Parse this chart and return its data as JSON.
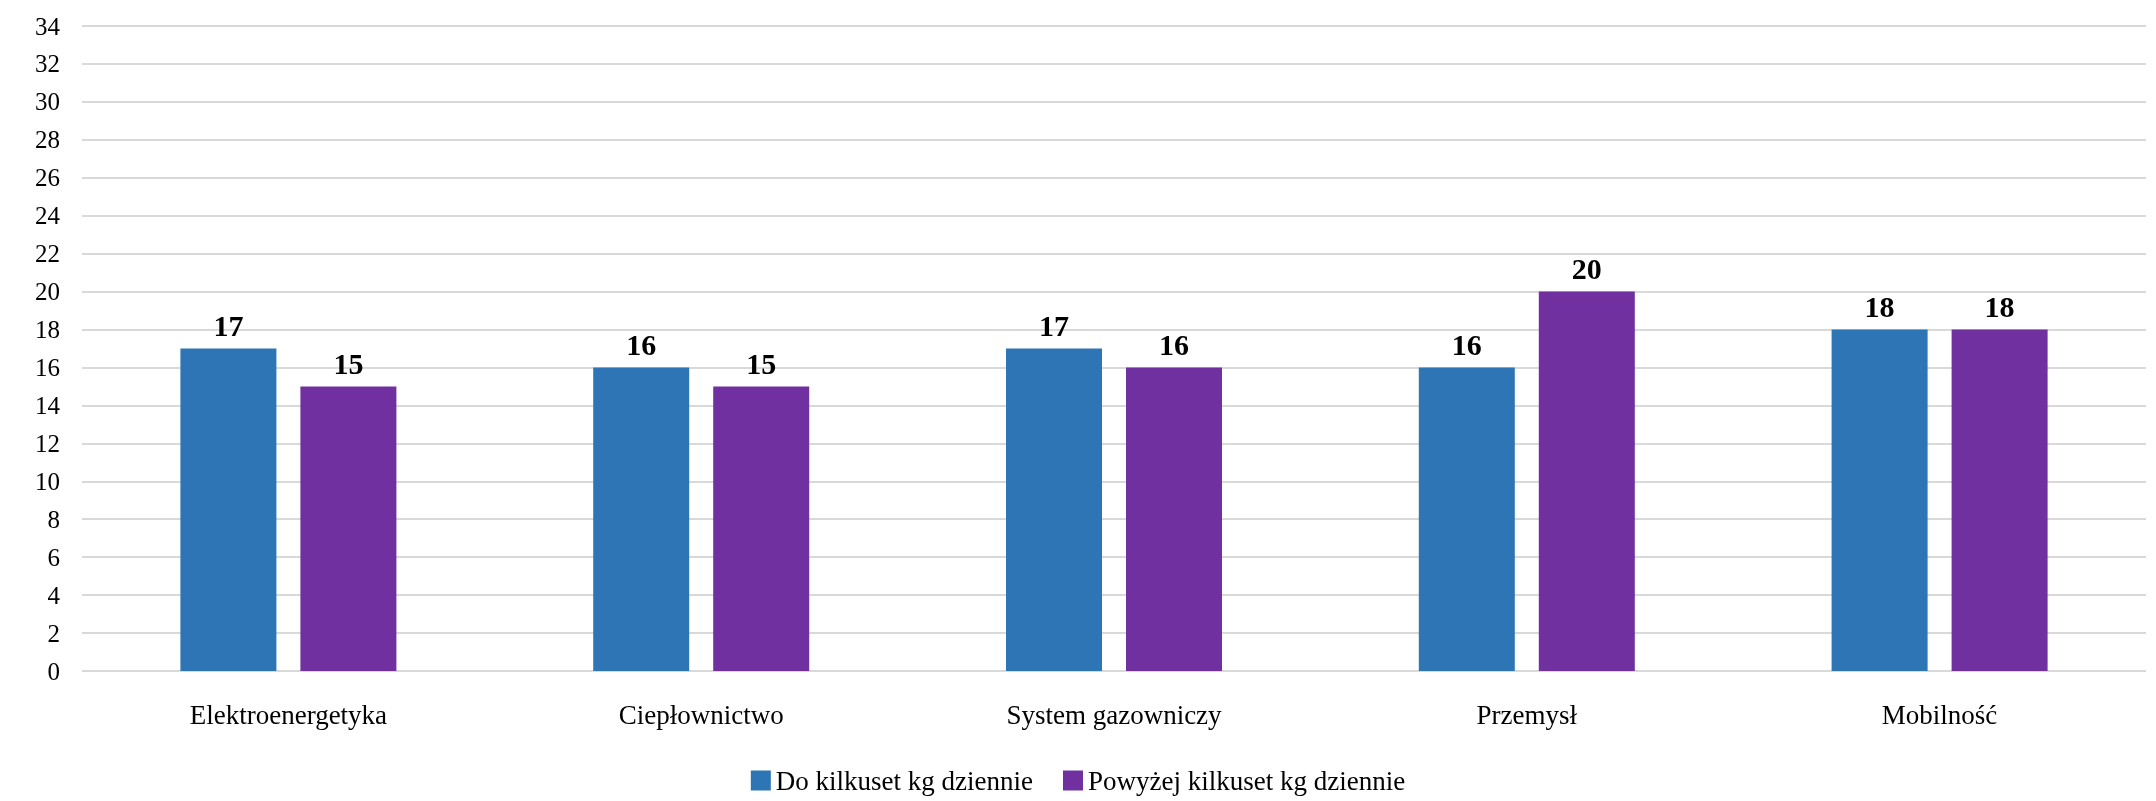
{
  "chart_data": {
    "type": "bar",
    "categories": [
      "Elektroenergetyka",
      "Ciepłownictwo",
      "System gazowniczy",
      "Przemysł",
      "Mobilność"
    ],
    "series": [
      {
        "name": "Do kilkuset kg dziennie",
        "color": "#2e75b6",
        "values": [
          17,
          16,
          17,
          16,
          18
        ]
      },
      {
        "name": "Powyżej kilkuset kg dziennie",
        "color": "#7030a0",
        "values": [
          15,
          15,
          16,
          20,
          18
        ]
      }
    ],
    "ylim": [
      0,
      34
    ],
    "yticks": [
      0,
      2,
      4,
      6,
      8,
      10,
      12,
      14,
      16,
      18,
      20,
      22,
      24,
      26,
      28,
      30,
      32,
      34
    ],
    "grid": "y",
    "legend": "bottom",
    "data_labels": true
  }
}
